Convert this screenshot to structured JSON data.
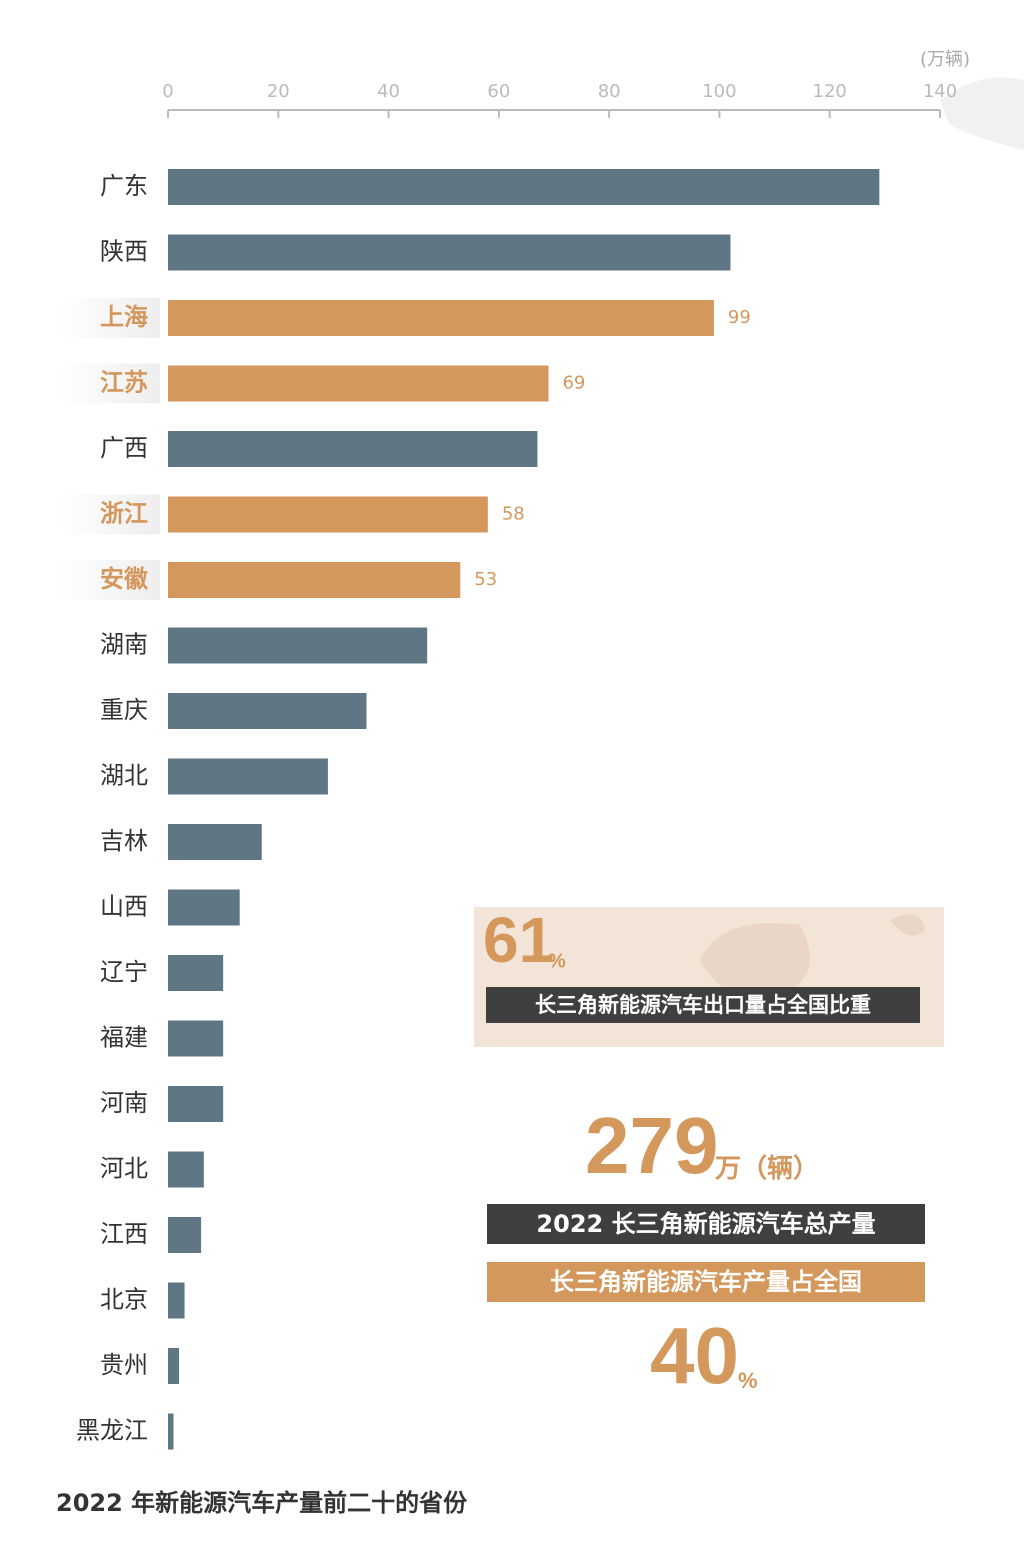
{
  "chart_data": {
    "type": "bar",
    "orientation": "horizontal",
    "title": "2022 年新能源汽车产量前二十的省份",
    "x_label": "(万辆)",
    "categories": [
      "广东",
      "陕西",
      "上海",
      "江苏",
      "广西",
      "浙江",
      "安徽",
      "湖南",
      "重庆",
      "湖北",
      "吉林",
      "山西",
      "辽宁",
      "福建",
      "河南",
      "河北",
      "江西",
      "北京",
      "贵州",
      "黑龙江"
    ],
    "values": [
      129,
      102,
      99,
      69,
      67,
      58,
      53,
      47,
      36,
      29,
      17,
      13,
      10,
      10,
      10,
      6.5,
      6,
      3,
      2,
      1
    ],
    "value_labels": [
      null,
      null,
      "99",
      "69",
      null,
      "58",
      "53",
      null,
      null,
      null,
      null,
      null,
      null,
      null,
      null,
      null,
      null,
      null,
      null,
      null
    ],
    "colors": [
      "#5f7684",
      "#5f7684",
      "#d4975c",
      "#d4975c",
      "#5f7684",
      "#d4975c",
      "#d4975c",
      "#5f7684",
      "#5f7684",
      "#5f7684",
      "#5f7684",
      "#5f7684",
      "#5f7684",
      "#5f7684",
      "#5f7684",
      "#5f7684",
      "#5f7684",
      "#5f7684",
      "#5f7684",
      "#5f7684"
    ],
    "xlim": [
      0,
      140
    ],
    "xticks": [
      0,
      20,
      40,
      60,
      80,
      100,
      120,
      140
    ],
    "annotations": [
      {
        "number": "61",
        "unit": "%",
        "text": "长三角新能源汽车出口量占全国比重"
      },
      {
        "number": "279",
        "unit": "万（辆）",
        "text": "2022 长三角新能源汽车总产量"
      },
      {
        "number": "40",
        "unit": "%",
        "text": "长三角新能源汽车产量占全国"
      }
    ]
  }
}
